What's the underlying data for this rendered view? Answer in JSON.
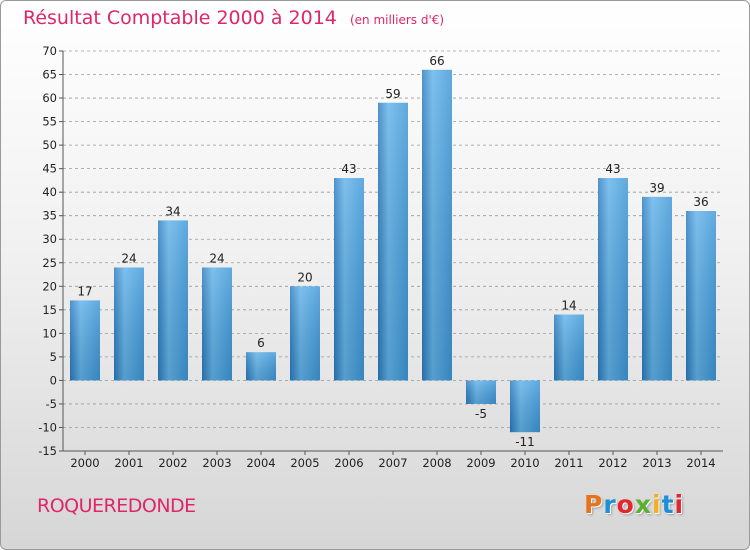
{
  "header": {
    "title": "Résultat Comptable 2000 à 2014",
    "subtitle": "(en milliers d'€)"
  },
  "footer": {
    "commune": "ROQUEREDONDE",
    "logo_text": "Proxiti",
    "logo_colors": [
      "#e8731f",
      "#1c8fd6",
      "#e3262c",
      "#5bb02f",
      "#f2b01e",
      "#1c8fd6",
      "#e3262c"
    ]
  },
  "colors": {
    "title": "#e0266a",
    "bar": "#3d97d8",
    "bar_light": "#62b3ea",
    "bar_dark": "#2a7cbf",
    "axis_text": "#222222",
    "grid": "#9a9a9a"
  },
  "chart_data": {
    "type": "bar",
    "title": "Résultat Comptable 2000 à 2014",
    "subtitle": "(en milliers d'€)",
    "categories": [
      "2000",
      "2001",
      "2002",
      "2003",
      "2004",
      "2005",
      "2006",
      "2007",
      "2008",
      "2009",
      "2010",
      "2011",
      "2012",
      "2013",
      "2014"
    ],
    "values": [
      17,
      24,
      34,
      24,
      6,
      20,
      43,
      59,
      66,
      -5,
      -11,
      14,
      43,
      39,
      36
    ],
    "labels": [
      "17",
      "24",
      "34",
      "24",
      "6",
      "20",
      "43",
      "59",
      "66",
      "-5",
      "-11",
      "14",
      "43",
      "39",
      "36"
    ],
    "ylim": [
      -15,
      70
    ],
    "yticks": [
      70,
      65,
      60,
      55,
      50,
      45,
      40,
      35,
      30,
      25,
      20,
      15,
      10,
      5,
      0,
      -5,
      -10,
      -15
    ],
    "ytick_labels": [
      "70",
      "65",
      "60",
      "55",
      "50",
      "45",
      "40",
      "35",
      "30",
      "25",
      "20",
      "15",
      "10",
      "5",
      "0",
      "-5",
      "-10",
      "-15"
    ],
    "xlabel": "",
    "ylabel": "",
    "grid": "horizontal-dashed"
  }
}
